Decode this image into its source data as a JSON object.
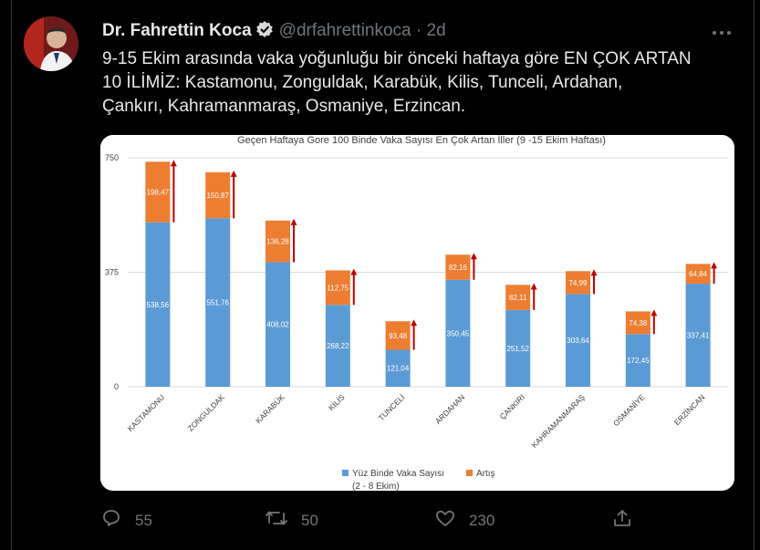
{
  "tweet": {
    "author_name": "Dr. Fahrettin Koca",
    "handle": "@drfahrettinkoca",
    "separator": "·",
    "time": "2d",
    "text_line1": "9-15 Ekim arasında vaka yoğunluğu bir önceki haftaya göre EN ÇOK ARTAN",
    "text_line2": "10 İLİMİZ: Kastamonu, Zonguldak, Karabük, Kilis, Tunceli, Ardahan,",
    "text_line3": "Çankırı, Kahramanmaraş, Osmaniye, Erzincan."
  },
  "actions": {
    "replies": "55",
    "retweets": "50",
    "likes": "230"
  },
  "icons": {
    "verified": "verified-badge-icon",
    "more": "more-icon",
    "reply": "reply-icon",
    "retweet": "retweet-icon",
    "like": "heart-icon",
    "share": "share-icon"
  },
  "colors": {
    "background": "#000000",
    "text": "#e7e9ea",
    "muted": "#71767b",
    "bar_base": "#5b9bd5",
    "bar_increase": "#ed7d31",
    "arrow": "#c00000"
  },
  "chart_data": {
    "type": "bar",
    "stacked": true,
    "title": "Geçen Haftaya Gore 100 Binde Vaka Sayısı En Çok Artan İller (9 -15 Ekim Haftası)",
    "categories": [
      "KASTAMONU",
      "ZONGULDAK",
      "KARABÜK",
      "KİLİS",
      "TUNCELİ",
      "ARDAHAN",
      "ÇANKIRI",
      "KAHRAMANMARAŞ",
      "OSMANİYE",
      "ERZİNCAN"
    ],
    "series": [
      {
        "name": "Yüz Binde Vaka Sayısı (2 - 8 Ekim)",
        "color": "#5b9bd5",
        "values": [
          538.56,
          551.76,
          408.02,
          268.22,
          121.04,
          350.45,
          251.52,
          303.64,
          172.45,
          337.41
        ]
      },
      {
        "name": "Artış",
        "color": "#ed7d31",
        "values": [
          198.47,
          150.87,
          136.28,
          112.75,
          93.48,
          82.16,
          82.11,
          74.99,
          74.38,
          64.84
        ]
      }
    ],
    "base_labels": [
      "538,56",
      "551,76",
      "408,02",
      "268,22",
      "121,04",
      "350,45",
      "251,52",
      "303,64",
      "172,45",
      "337,41"
    ],
    "increase_labels": [
      "198,47",
      "150,87",
      "136,28",
      "112,75",
      "93,48",
      "82,16",
      "82,11",
      "74,99",
      "74,38",
      "64,84"
    ],
    "yticks": [
      "750",
      "375",
      "0"
    ],
    "ylim": [
      0,
      750
    ],
    "grid": true,
    "legend_position": "bottom",
    "legend_base_label": "Yüz Binde Vaka Sayısı",
    "legend_base_sub": "(2 - 8 Ekim)",
    "legend_increase_label": "Artış"
  }
}
